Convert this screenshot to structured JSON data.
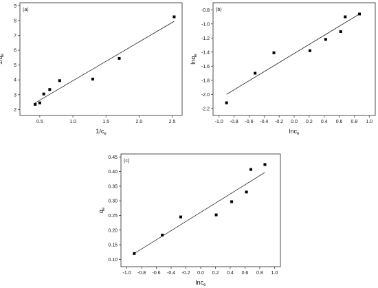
{
  "chart_data": [
    {
      "id": "a",
      "type": "scatter",
      "panel_label": "(a)",
      "xlabel": "1/c",
      "xlabel_sub": "e",
      "ylabel": "1/q",
      "ylabel_sub": "e",
      "xlim": [
        0.2,
        2.65
      ],
      "ylim": [
        1.6,
        9.2
      ],
      "xticks": [
        0.5,
        1.0,
        1.5,
        2.0,
        2.5
      ],
      "xtick_labels": [
        "0.5",
        "1.0",
        "1.5",
        "2.0",
        "2.5"
      ],
      "yticks": [
        2,
        3,
        4,
        5,
        6,
        7,
        8,
        9
      ],
      "ytick_labels": [
        "2",
        "3",
        "4",
        "5",
        "6",
        "7",
        "8",
        "9"
      ],
      "points": [
        {
          "x": 0.43,
          "y": 2.35
        },
        {
          "x": 0.5,
          "y": 2.45
        },
        {
          "x": 0.56,
          "y": 3.05
        },
        {
          "x": 0.65,
          "y": 3.35
        },
        {
          "x": 0.8,
          "y": 3.95
        },
        {
          "x": 1.3,
          "y": 4.05
        },
        {
          "x": 1.7,
          "y": 5.45
        },
        {
          "x": 2.53,
          "y": 8.25
        }
      ],
      "fit": [
        {
          "x": 0.43,
          "y": 2.45
        },
        {
          "x": 2.53,
          "y": 7.95
        }
      ],
      "grid": false
    },
    {
      "id": "b",
      "type": "scatter",
      "panel_label": "(b)",
      "xlabel": "lnc",
      "xlabel_sub": "e",
      "ylabel": "lnq",
      "ylabel_sub": "e",
      "xlim": [
        -1.08,
        1.08
      ],
      "ylim": [
        -2.3,
        -0.7
      ],
      "xticks": [
        -1.0,
        -0.8,
        -0.6,
        -0.4,
        -0.2,
        0.0,
        0.2,
        0.4,
        0.6,
        0.8,
        1.0
      ],
      "xtick_labels": [
        "-1.0",
        "-0.8",
        "-0.6",
        "-0.4",
        "-0.2",
        "0.0",
        "0.2",
        "0.4",
        "0.6",
        "0.8",
        "1.0"
      ],
      "yticks": [
        -2.2,
        -2.0,
        -1.8,
        -1.6,
        -1.4,
        -1.2,
        -1.0,
        -0.8
      ],
      "ytick_labels": [
        "-2.2",
        "-2.0",
        "-1.8",
        "-1.6",
        "-1.4",
        "-1.2",
        "-1.0",
        "-0.8"
      ],
      "points": [
        {
          "x": -0.9,
          "y": -2.12
        },
        {
          "x": -0.52,
          "y": -1.7
        },
        {
          "x": -0.27,
          "y": -1.41
        },
        {
          "x": 0.21,
          "y": -1.38
        },
        {
          "x": 0.42,
          "y": -1.22
        },
        {
          "x": 0.62,
          "y": -1.11
        },
        {
          "x": 0.68,
          "y": -0.9
        },
        {
          "x": 0.87,
          "y": -0.86
        }
      ],
      "fit": [
        {
          "x": -0.9,
          "y": -2.0
        },
        {
          "x": 0.87,
          "y": -0.86
        }
      ],
      "grid": false
    },
    {
      "id": "c",
      "type": "scatter",
      "panel_label": "(c)",
      "xlabel": "lnc",
      "xlabel_sub": "e",
      "ylabel": "q",
      "ylabel_sub": "e",
      "xlim": [
        -1.08,
        1.08
      ],
      "ylim": [
        0.075,
        0.46
      ],
      "xticks": [
        -1.0,
        -0.8,
        -0.6,
        -0.4,
        -0.2,
        0.0,
        0.2,
        0.4,
        0.6,
        0.8,
        1.0
      ],
      "xtick_labels": [
        "-1.0",
        "-0.8",
        "-0.6",
        "-0.4",
        "-0.2",
        "0.0",
        "0.2",
        "0.4",
        "0.6",
        "0.8",
        "1.0"
      ],
      "yticks": [
        0.1,
        0.15,
        0.2,
        0.25,
        0.3,
        0.35,
        0.4,
        0.45
      ],
      "ytick_labels": [
        "0.10",
        "0.15",
        "0.20",
        "0.25",
        "0.30",
        "0.35",
        "0.40",
        "0.45"
      ],
      "points": [
        {
          "x": -0.9,
          "y": 0.12
        },
        {
          "x": -0.52,
          "y": 0.183
        },
        {
          "x": -0.27,
          "y": 0.245
        },
        {
          "x": 0.21,
          "y": 0.252
        },
        {
          "x": 0.42,
          "y": 0.297
        },
        {
          "x": 0.62,
          "y": 0.33
        },
        {
          "x": 0.68,
          "y": 0.407
        },
        {
          "x": 0.87,
          "y": 0.424
        }
      ],
      "fit": [
        {
          "x": -0.9,
          "y": 0.12
        },
        {
          "x": 0.87,
          "y": 0.397
        }
      ],
      "grid": false
    }
  ]
}
